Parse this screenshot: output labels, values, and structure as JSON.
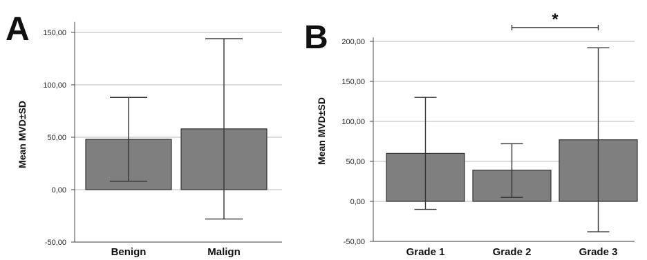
{
  "chart_data": [
    {
      "panel": "A",
      "type": "bar",
      "ylabel": "Mean MVD±SD",
      "categories": [
        "Benign",
        "Malign"
      ],
      "values": [
        48,
        58
      ],
      "error_low": [
        8,
        -28
      ],
      "error_high": [
        88,
        144
      ],
      "ylim": [
        -50,
        160
      ],
      "yticks": [
        -50,
        0,
        50,
        100,
        150
      ],
      "ytick_labels": [
        "-50,00",
        "0,00",
        "50,00",
        "100,00",
        "150,00"
      ],
      "grid": true,
      "bar_color": "#7f7f7f"
    },
    {
      "panel": "B",
      "type": "bar",
      "ylabel": "Mean MVD±SD",
      "categories": [
        "Grade 1",
        "Grade 2",
        "Grade 3"
      ],
      "values": [
        60,
        39,
        77
      ],
      "error_low": [
        -10,
        5,
        -38
      ],
      "error_high": [
        130,
        72,
        192
      ],
      "ylim": [
        -50,
        205
      ],
      "yticks": [
        -50,
        0,
        50,
        100,
        150,
        200
      ],
      "ytick_labels": [
        "-50,00",
        "0,00",
        "50,00",
        "100,00",
        "150,00",
        "200,00"
      ],
      "grid": true,
      "bar_color": "#7f7f7f",
      "significance": {
        "from": "Grade 2",
        "to": "Grade 3",
        "label": "*"
      }
    }
  ]
}
